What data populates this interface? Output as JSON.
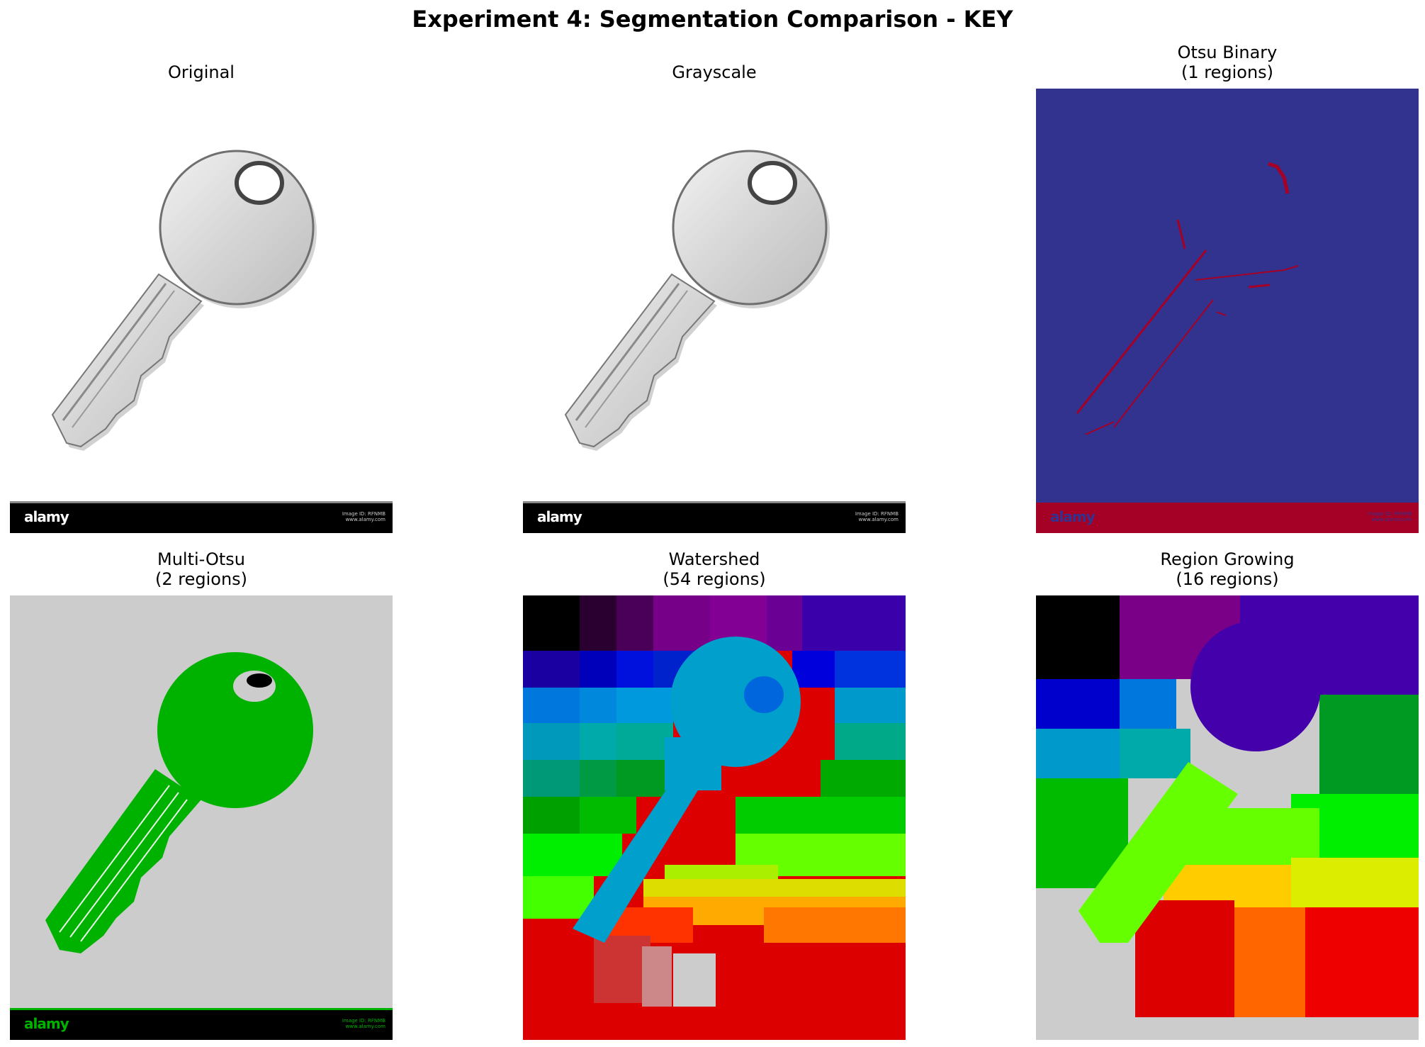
{
  "figure": {
    "title": "Experiment 4: Segmentation Comparison - KEY"
  },
  "panels": [
    {
      "title": "Original"
    },
    {
      "title": "Grayscale"
    },
    {
      "title": "Otsu Binary",
      "subtitle": "(1 regions)"
    },
    {
      "title": "Multi-Otsu",
      "subtitle": "(2 regions)"
    },
    {
      "title": "Watershed",
      "subtitle": "(54 regions)"
    },
    {
      "title": "Region Growing",
      "subtitle": "(16 regions)"
    }
  ],
  "image_text": {
    "logo": "alamy",
    "caption_line1": "Image ID: RFNMB",
    "caption_line2": "www.alamy.com"
  },
  "colors": {
    "otsu_background": "#31338f",
    "otsu_foreground": "#a50026",
    "multi_otsu_background": "#cccccc",
    "multi_otsu_key": "#00b200",
    "banner": "#000000"
  }
}
